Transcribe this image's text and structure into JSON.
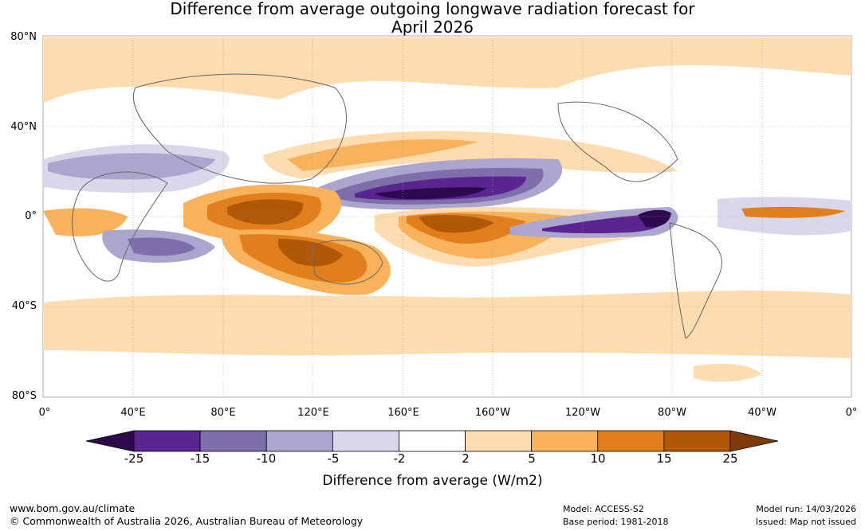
{
  "title_line1": "Difference from average outgoing longwave radiation forecast for",
  "title_line2": "April 2026",
  "map": {
    "lat_labels": [
      "80°N",
      "40°N",
      "0°",
      "40°S",
      "80°S"
    ],
    "lon_labels": [
      "0°",
      "40°E",
      "80°E",
      "120°E",
      "160°E",
      "160°W",
      "120°W",
      "80°W",
      "40°W",
      "0°"
    ]
  },
  "colorbar": {
    "title": "Difference from average (W/m2)",
    "ticks": [
      "-25",
      "-15",
      "-10",
      "-5",
      "-2",
      "2",
      "5",
      "10",
      "15",
      "25"
    ],
    "colors": [
      "#2d0a4e",
      "#5a2590",
      "#7e6eaa",
      "#aca6cf",
      "#d9d8ea",
      "#ffffff",
      "#fddcb0",
      "#f9b25c",
      "#e07f1b",
      "#b15808",
      "#7f3b08"
    ]
  },
  "footer": {
    "url": "www.bom.gov.au/climate",
    "copyright": "© Commonwealth of Australia 2026, Australian Bureau of Meteorology",
    "model": "Model: ACCESS-S2",
    "base_period": "Base period: 1981-2018",
    "model_run": "Model run: 14/03/2026",
    "issued": "Issued: Map not issued"
  }
}
